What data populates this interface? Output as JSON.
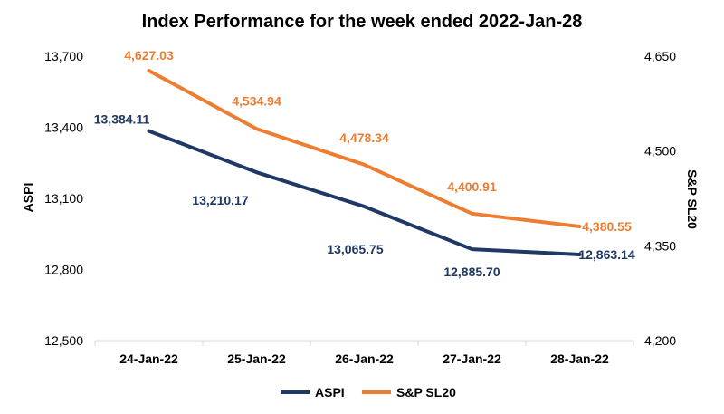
{
  "chart_data": {
    "type": "line",
    "title": "Index Performance for the week ended 2022-Jan-28",
    "categories": [
      "24-Jan-22",
      "25-Jan-22",
      "26-Jan-22",
      "27-Jan-22",
      "28-Jan-22"
    ],
    "y_left": {
      "label": "ASPI",
      "ylim": [
        12500,
        13700
      ],
      "ticks": [
        "12,500",
        "12,800",
        "13,100",
        "13,400",
        "13,700"
      ]
    },
    "y_right": {
      "label": "S&P SL20",
      "ylim": [
        4200,
        4650
      ],
      "ticks": [
        "4,200",
        "4,350",
        "4,500",
        "4,650"
      ]
    },
    "series": [
      {
        "name": "ASPI",
        "axis": "left",
        "color": "#1F3864",
        "values": [
          13384.11,
          13210.17,
          13065.75,
          12885.7,
          12863.14
        ],
        "labels": [
          "13,384.11",
          "13,210.17",
          "13,065.75",
          "12,885.70",
          "12,863.14"
        ]
      },
      {
        "name": "S&P SL20",
        "axis": "right",
        "color": "#ED7D31",
        "values": [
          4627.03,
          4534.94,
          4478.34,
          4400.91,
          4380.55
        ],
        "labels": [
          "4,627.03",
          "4,534.94",
          "4,478.34",
          "4,400.91",
          "4,380.55"
        ]
      }
    ],
    "grid": false,
    "legend_position": "bottom"
  }
}
